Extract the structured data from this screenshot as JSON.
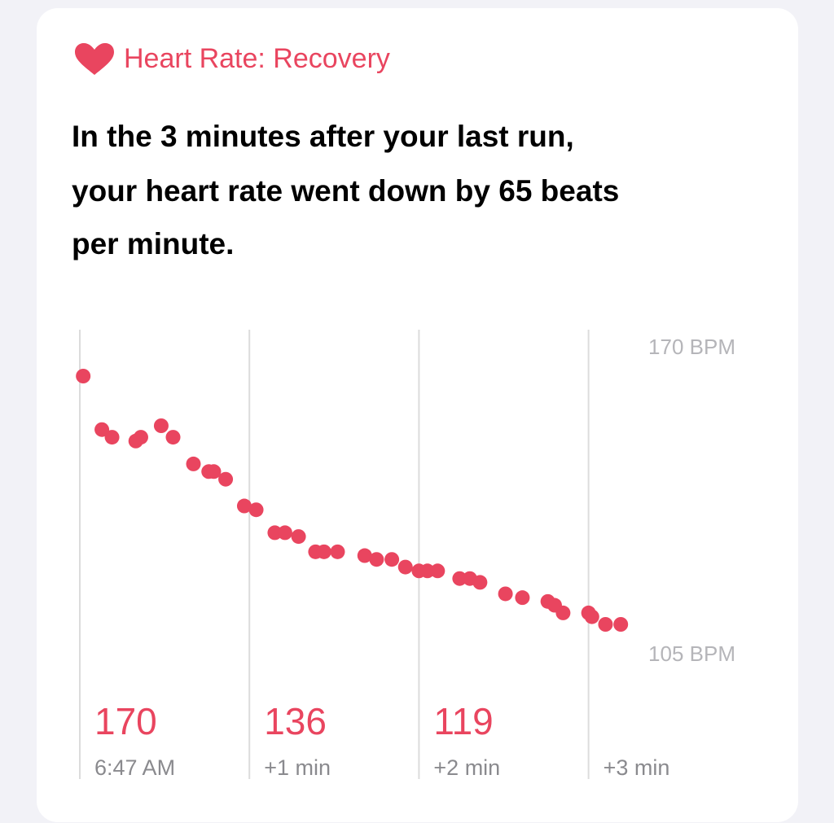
{
  "header": {
    "title": "Heart Rate: Recovery"
  },
  "body_lines": [
    "In the 3 minutes after your last run,",
    "your heart rate went down by 65 beats",
    "per minute."
  ],
  "chart_data": {
    "type": "scatter",
    "color": "#e9455f",
    "x": [
      0.02,
      0.13,
      0.19,
      0.33,
      0.36,
      0.48,
      0.55,
      0.67,
      0.76,
      0.79,
      0.86,
      0.97,
      1.04,
      1.15,
      1.21,
      1.29,
      1.39,
      1.44,
      1.52,
      1.68,
      1.75,
      1.84,
      1.92,
      2.0,
      2.05,
      2.11,
      2.24,
      2.3,
      2.36,
      2.51,
      2.61,
      2.76,
      2.8,
      2.85,
      3.0,
      3.02,
      3.1,
      3.19
    ],
    "values": [
      170,
      156,
      154,
      153,
      154,
      157,
      154,
      147,
      145,
      145,
      143,
      136,
      135,
      129,
      129,
      128,
      124,
      124,
      124,
      123,
      122,
      122,
      120,
      119,
      119,
      119,
      117,
      117,
      116,
      113,
      112,
      111,
      110,
      108,
      108,
      107,
      105,
      105
    ],
    "xlim": [
      0,
      3.9
    ],
    "ylim": [
      105,
      170
    ],
    "xticks": [
      {
        "value": 0,
        "label": "6:47 AM"
      },
      {
        "value": 1,
        "label": "+1 min"
      },
      {
        "value": 2,
        "label": "+2 min"
      },
      {
        "value": 3,
        "label": "+3 min"
      }
    ],
    "yticks": [
      {
        "value": 170,
        "label": "170 BPM"
      },
      {
        "value": 105,
        "label": "105 BPM"
      }
    ],
    "minute_values": [
      170,
      136,
      119
    ]
  }
}
